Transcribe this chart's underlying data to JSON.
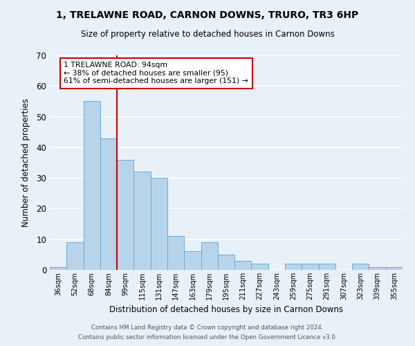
{
  "title": "1, TRELAWNE ROAD, CARNON DOWNS, TRURO, TR3 6HP",
  "subtitle": "Size of property relative to detached houses in Carnon Downs",
  "xlabel": "Distribution of detached houses by size in Carnon Downs",
  "ylabel": "Number of detached properties",
  "footer_line1": "Contains HM Land Registry data © Crown copyright and database right 2024.",
  "footer_line2": "Contains public sector information licensed under the Open Government Licence v3.0.",
  "bar_labels": [
    "36sqm",
    "52sqm",
    "68sqm",
    "84sqm",
    "99sqm",
    "115sqm",
    "131sqm",
    "147sqm",
    "163sqm",
    "179sqm",
    "195sqm",
    "211sqm",
    "227sqm",
    "243sqm",
    "259sqm",
    "275sqm",
    "291sqm",
    "307sqm",
    "323sqm",
    "339sqm",
    "355sqm"
  ],
  "bar_values": [
    1,
    9,
    55,
    43,
    36,
    32,
    30,
    11,
    6,
    9,
    5,
    3,
    2,
    0,
    2,
    2,
    2,
    0,
    2,
    1,
    1
  ],
  "bar_color": "#b8d4ea",
  "bar_edge_color": "#6aaad4",
  "ylim": [
    0,
    70
  ],
  "yticks": [
    0,
    10,
    20,
    30,
    40,
    50,
    60,
    70
  ],
  "vline_idx": 4,
  "vline_color": "#cc0000",
  "annotation_text": "1 TRELAWNE ROAD: 94sqm\n← 38% of detached houses are smaller (95)\n61% of semi-detached houses are larger (151) →",
  "annotation_box_color": "#ffffff",
  "annotation_box_edge": "#cc0000",
  "bg_color": "#e8f0f8",
  "plot_bg_color": "#e8f0f8",
  "grid_color": "#ffffff"
}
